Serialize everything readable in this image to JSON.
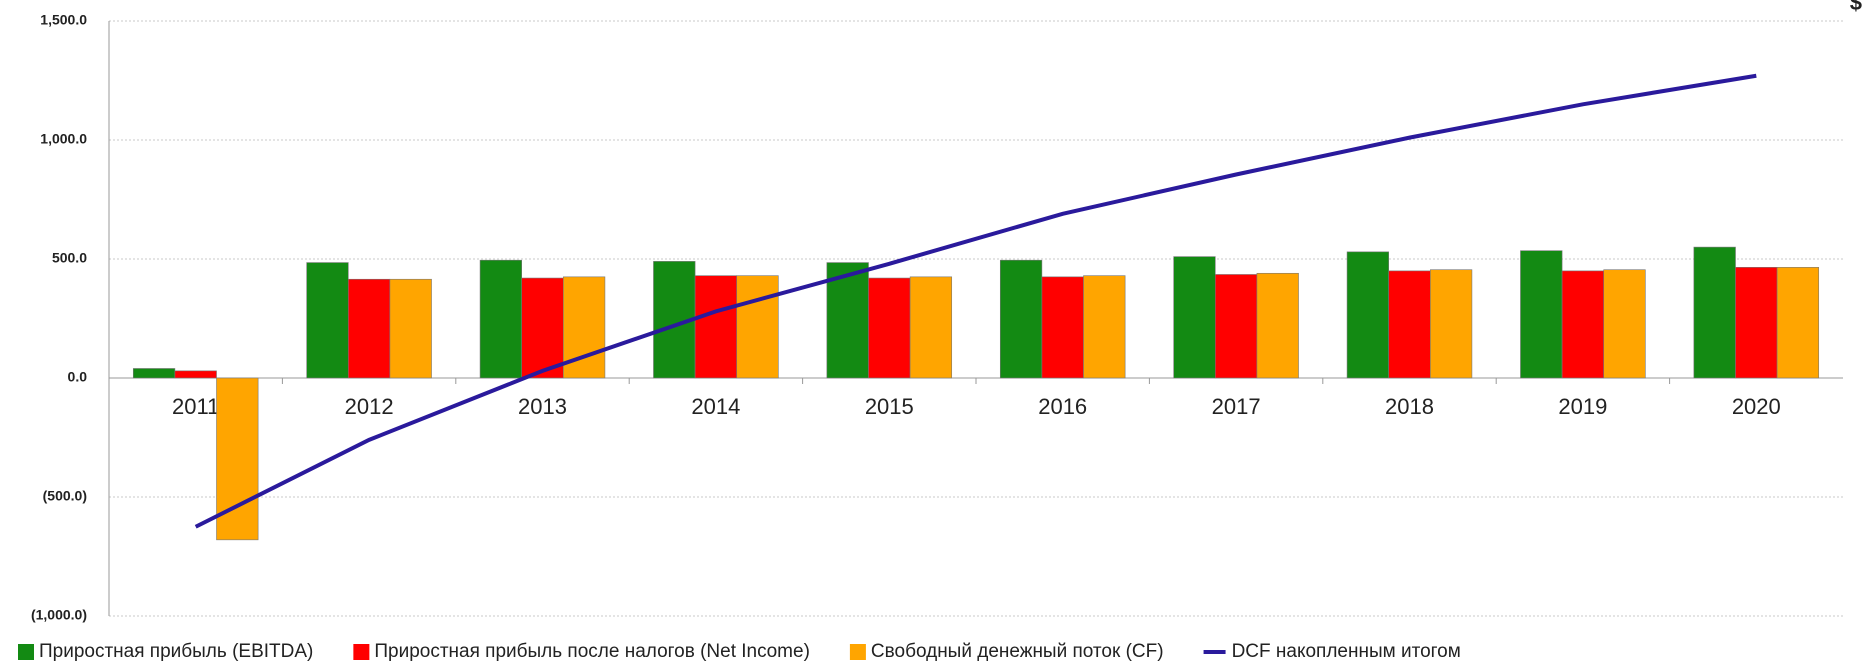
{
  "chart_data": {
    "type": "bar",
    "unit": "$",
    "categories": [
      "2011",
      "2012",
      "2013",
      "2014",
      "2015",
      "2016",
      "2017",
      "2018",
      "2019",
      "2020"
    ],
    "series": [
      {
        "name": "Приростная  прибыль (EBITDA)",
        "color": "#138a13",
        "type": "bar",
        "values": [
          40,
          485,
          495,
          490,
          485,
          495,
          510,
          530,
          535,
          550
        ]
      },
      {
        "name": "Приростная прибыль после налогов (Net Income)",
        "color": "#ff0000",
        "type": "bar",
        "values": [
          30,
          415,
          420,
          430,
          420,
          425,
          435,
          450,
          450,
          465
        ]
      },
      {
        "name": "Свободный денежный поток (CF)",
        "color": "#ffa500",
        "type": "bar",
        "values": [
          -680,
          415,
          425,
          430,
          425,
          430,
          440,
          455,
          455,
          465
        ]
      },
      {
        "name": "DCF накопленным итогом",
        "color": "#2a1a9c",
        "type": "line",
        "values": [
          -625,
          -260,
          30,
          280,
          480,
          690,
          855,
          1010,
          1150,
          1270
        ]
      }
    ],
    "ylim": [
      -1000,
      1500
    ],
    "yticks": [
      {
        "value": -1000,
        "label": "(1,000.0)"
      },
      {
        "value": -500,
        "label": "(500.0)"
      },
      {
        "value": 0,
        "label": "0.0"
      },
      {
        "value": 500,
        "label": "500.0"
      },
      {
        "value": 1000,
        "label": "1,000.0"
      },
      {
        "value": 1500,
        "label": "1,500.0"
      }
    ],
    "grid": true,
    "legend": "bottom"
  }
}
